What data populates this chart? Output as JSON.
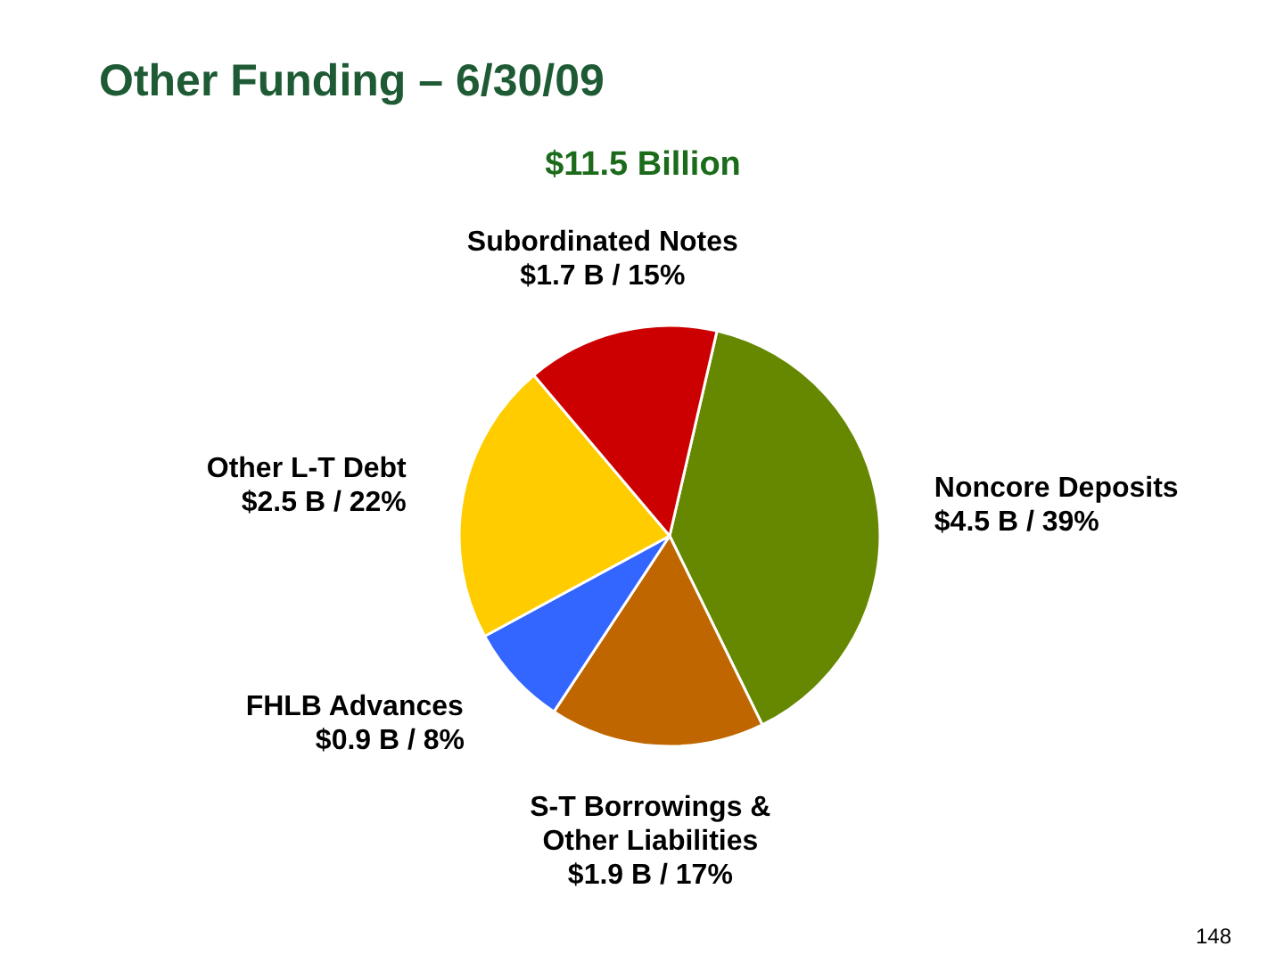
{
  "chart_data": {
    "type": "pie",
    "title": "Other Funding – 6/30/09",
    "subtitle": "$11.5 Billion",
    "categories": [
      "Noncore Deposits",
      "S-T Borrowings & Other Liabilities",
      "FHLB Advances",
      "Other L-T Debt",
      "Subordinated Notes"
    ],
    "values": [
      4.5,
      1.9,
      0.9,
      2.5,
      1.7
    ],
    "colors": [
      "#668800",
      "#c06600",
      "#3366ff",
      "#ffcc00",
      "#cc0000"
    ],
    "value_labels": [
      "$4.5 B / 39%",
      "$1.9 B / 17%",
      "$0.9 B / 8%",
      "$2.5 B / 22%",
      "$1.7 B / 15%"
    ],
    "annotations": [
      "148"
    ]
  }
}
